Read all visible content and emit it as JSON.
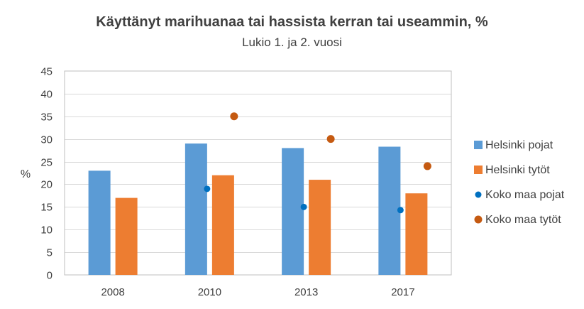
{
  "chart_data": {
    "type": "bar",
    "title": "Käyttänyt marihuanaa  tai hassista kerran tai useammin, %",
    "subtitle": "Lukio 1. ja 2. vuosi",
    "xlabel": "",
    "ylabel": "%",
    "ylim": [
      0,
      45
    ],
    "yticks": [
      0,
      5,
      10,
      15,
      20,
      25,
      30,
      35,
      40,
      45
    ],
    "grid": true,
    "legend_position": "right",
    "categories": [
      "2008",
      "2010",
      "2013",
      "2017"
    ],
    "series": [
      {
        "name": "Helsinki pojat",
        "kind": "bar",
        "color": "#5b9bd5",
        "values": [
          23,
          29,
          28,
          28.3
        ]
      },
      {
        "name": "Helsinki tytöt",
        "kind": "bar",
        "color": "#ed7d31",
        "values": [
          17,
          22,
          21,
          18
        ]
      },
      {
        "name": "Koko maa pojat",
        "kind": "point",
        "color": "#0070c0",
        "values": [
          null,
          19,
          15,
          14.3
        ]
      },
      {
        "name": "Koko maa tytöt",
        "kind": "point",
        "color": "#c55a11",
        "values": [
          null,
          35,
          30,
          24
        ]
      }
    ]
  }
}
